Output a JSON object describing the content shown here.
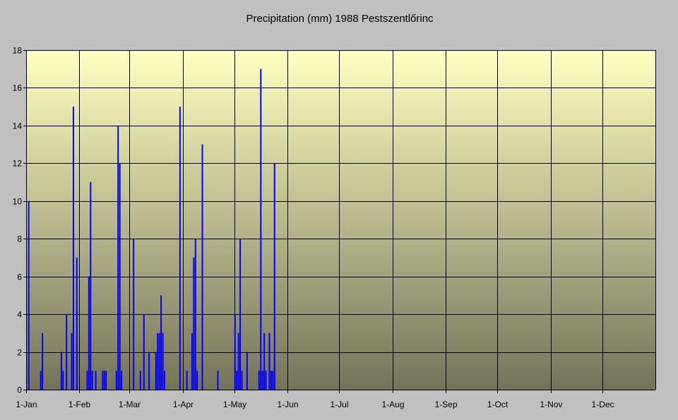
{
  "chart_data": {
    "type": "bar",
    "title": "Precipitation (mm) 1988 Pestszentlőrinc",
    "xlabel": "",
    "ylabel": "",
    "ylim": [
      0,
      18
    ],
    "y_ticks": [
      "0",
      "2",
      "4",
      "6",
      "8",
      "10",
      "12",
      "14",
      "16",
      "18"
    ],
    "x_tick_labels": [
      "1-Jan",
      "1-Feb",
      "1-Mar",
      "1-Apr",
      "1-May",
      "1-Jun",
      "1-Jul",
      "1-Aug",
      "1-Sep",
      "1-Oct",
      "1-Nov",
      "1-Dec"
    ],
    "x_tick_dates": [
      "1988-01-01",
      "1988-02-01",
      "1988-03-01",
      "1988-04-01",
      "1988-05-01",
      "1988-06-01",
      "1988-07-01",
      "1988-08-01",
      "1988-09-01",
      "1988-10-01",
      "1988-11-01",
      "1988-12-01"
    ],
    "x_range": [
      "1988-01-01",
      "1988-12-31"
    ],
    "grid": true,
    "legend": "none",
    "colors": {
      "bar": "#0000ff",
      "background_outer": "#c0c0c0",
      "plot_top": "#ffffc0",
      "plot_bottom": "#74735a",
      "gridline": "#000000"
    },
    "series": [
      {
        "dates": [
          "1988-01-02",
          "1988-01-09",
          "1988-01-10",
          "1988-01-21",
          "1988-01-22",
          "1988-01-24",
          "1988-01-27",
          "1988-01-28",
          "1988-01-30",
          "1988-02-05",
          "1988-02-06",
          "1988-02-07",
          "1988-02-08",
          "1988-02-10",
          "1988-02-14",
          "1988-02-15",
          "1988-02-16",
          "1988-02-22",
          "1988-02-23",
          "1988-02-24",
          "1988-02-25",
          "1988-03-03",
          "1988-03-07",
          "1988-03-09",
          "1988-03-12",
          "1988-03-16",
          "1988-03-17",
          "1988-03-18",
          "1988-03-19",
          "1988-03-20",
          "1988-03-21",
          "1988-03-30",
          "1988-04-03",
          "1988-04-06",
          "1988-04-07",
          "1988-04-08",
          "1988-04-09",
          "1988-04-12",
          "1988-04-21",
          "1988-05-01",
          "1988-05-02",
          "1988-05-03",
          "1988-05-04",
          "1988-05-05",
          "1988-05-08",
          "1988-05-15",
          "1988-05-16",
          "1988-05-17",
          "1988-05-18",
          "1988-05-19",
          "1988-05-21",
          "1988-05-22",
          "1988-05-23",
          "1988-05-24"
        ],
        "values": [
          10,
          1,
          3,
          2,
          1,
          4,
          3,
          15,
          7,
          1,
          6,
          11,
          1,
          1,
          1,
          1,
          1,
          1,
          14,
          12,
          1,
          8,
          1,
          4,
          2,
          2,
          3,
          3,
          5,
          3,
          1,
          15,
          1,
          3,
          7,
          8,
          1,
          13,
          1,
          4,
          1,
          3,
          8,
          1,
          2,
          1,
          17,
          1,
          3,
          1,
          3,
          1,
          1,
          12
        ]
      }
    ]
  }
}
